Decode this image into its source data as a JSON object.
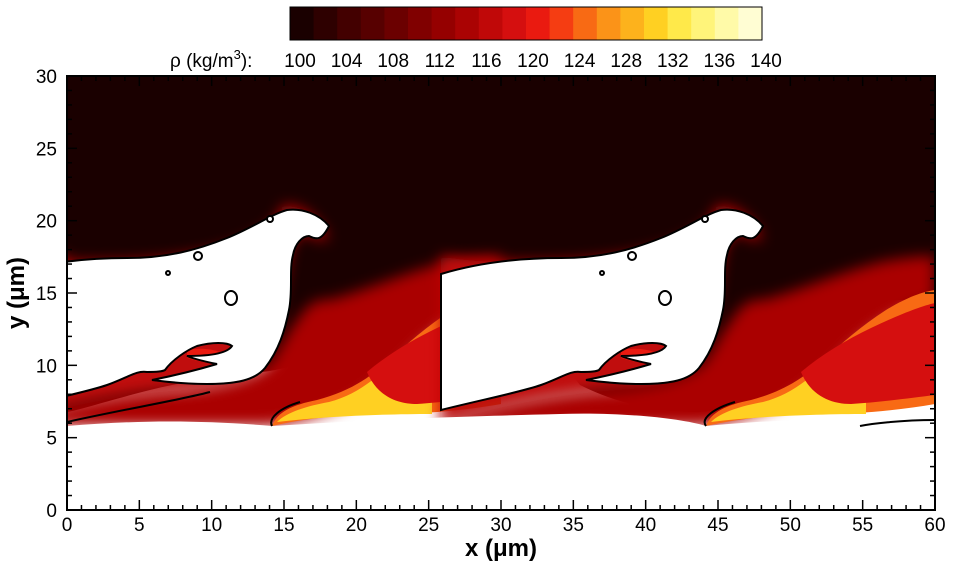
{
  "chart_data": {
    "type": "heatmap",
    "title": "",
    "xlabel": "x (μm)",
    "ylabel": "y (μm)",
    "xlim": [
      0,
      60
    ],
    "ylim": [
      0,
      30
    ],
    "x_ticks": [
      0,
      5,
      10,
      15,
      20,
      25,
      30,
      35,
      40,
      45,
      50,
      55,
      60
    ],
    "y_ticks": [
      0,
      5,
      10,
      15,
      20,
      25,
      30
    ],
    "grid": false,
    "colorbar": {
      "label": "ρ (kg/m³):",
      "label_parts": {
        "base": "ρ (kg/m",
        "sup": "3",
        "tail": "):"
      },
      "placement": "top",
      "levels": [
        100,
        102,
        104,
        106,
        108,
        110,
        112,
        114,
        116,
        118,
        120,
        122,
        124,
        126,
        128,
        130,
        132,
        134,
        136,
        138,
        140
      ],
      "tick_labels": [
        "100",
        "104",
        "108",
        "112",
        "116",
        "120",
        "124",
        "128",
        "132",
        "136",
        "140"
      ],
      "colors": [
        "#1a0000",
        "#2e0000",
        "#430000",
        "#570000",
        "#6b0000",
        "#800000",
        "#950000",
        "#aa0303",
        "#c00808",
        "#d50f0f",
        "#ea1a10",
        "#f53d12",
        "#f86a14",
        "#fb9318",
        "#fdb21c",
        "#ffd022",
        "#ffe94a",
        "#fff47a",
        "#fffaa8",
        "#fffdd3"
      ]
    },
    "field": {
      "description": "density field of a periodic Kelvin-Helmholtz-type wave, period 30 um in x",
      "background_value": 100,
      "light_phase_color": "#ffffff",
      "interface_color": "#000000"
    }
  }
}
